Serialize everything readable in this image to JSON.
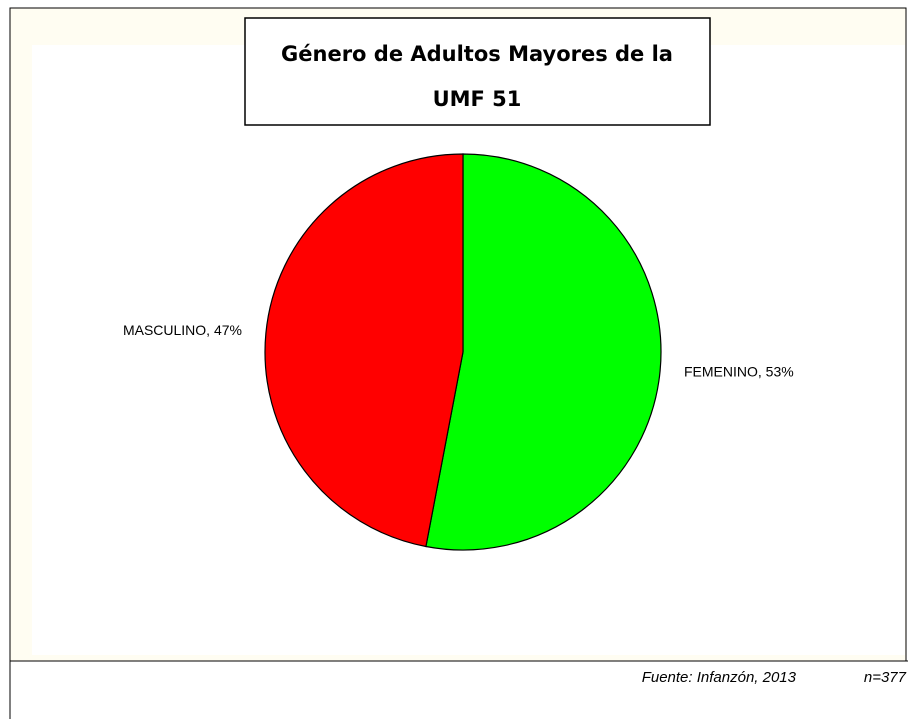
{
  "chart_data": {
    "type": "pie",
    "title": [
      "Género de Adultos Mayores de la",
      "UMF 51"
    ],
    "values": [
      53,
      47
    ],
    "value_labels": [
      "FEMENINO, 53%",
      "MASCULINO, 47%"
    ],
    "colors": [
      "#00ff00",
      "#ff0000"
    ],
    "source": [
      "Fuente: Infanzón, 2013",
      "n=377"
    ]
  }
}
